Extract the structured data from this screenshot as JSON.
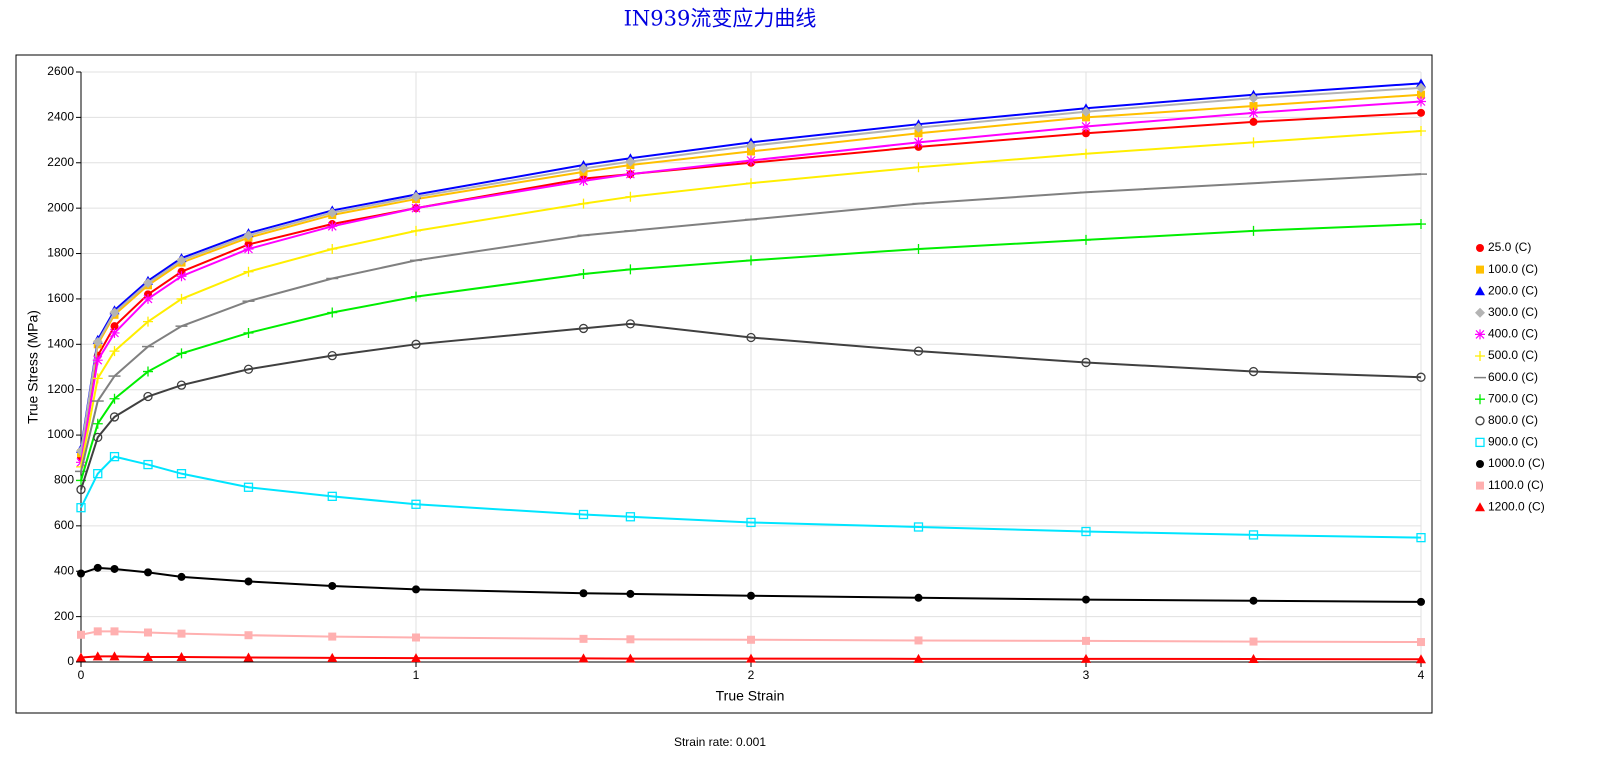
{
  "chart_data": {
    "type": "line",
    "title": "IN939流变应力曲线",
    "subtitle": "Strain rate: 0.001",
    "x_label": "True Strain",
    "y_label": "True Stress (MPa)",
    "xlim": [
      0,
      4
    ],
    "xticks": [
      0,
      1,
      2,
      3,
      4
    ],
    "ylim": [
      0,
      2600
    ],
    "yticks": [
      0,
      200,
      400,
      600,
      800,
      1000,
      1200,
      1400,
      1600,
      1800,
      2000,
      2200,
      2400,
      2600
    ],
    "grid": true,
    "legend": "right",
    "x": [
      0,
      0.05,
      0.1,
      0.2,
      0.3,
      0.5,
      0.75,
      1,
      1.5,
      1.64,
      2,
      2.5,
      3,
      3.5,
      4
    ],
    "series": [
      {
        "name": "25.0 (C)",
        "color": "#ff0000",
        "marker": "circle",
        "values": [
          900,
          1350,
          1480,
          1620,
          1720,
          1840,
          1930,
          2000,
          2130,
          2150,
          2200,
          2270,
          2330,
          2380,
          2420
        ]
      },
      {
        "name": "100.0 (C)",
        "color": "#ffc000",
        "marker": "square",
        "values": [
          920,
          1400,
          1530,
          1660,
          1760,
          1870,
          1970,
          2040,
          2160,
          2190,
          2250,
          2330,
          2400,
          2450,
          2500
        ]
      },
      {
        "name": "200.0 (C)",
        "color": "#0000ff",
        "marker": "triangle",
        "values": [
          940,
          1420,
          1550,
          1680,
          1780,
          1890,
          1990,
          2060,
          2190,
          2220,
          2290,
          2370,
          2440,
          2500,
          2550
        ]
      },
      {
        "name": "300.0 (C)",
        "color": "#b4b4b4",
        "marker": "diamond",
        "values": [
          930,
          1410,
          1540,
          1670,
          1770,
          1880,
          1980,
          2050,
          2175,
          2205,
          2275,
          2355,
          2425,
          2485,
          2530
        ]
      },
      {
        "name": "400.0 (C)",
        "color": "#ff00ff",
        "marker": "asterisk",
        "values": [
          880,
          1330,
          1450,
          1600,
          1700,
          1820,
          1920,
          2000,
          2120,
          2150,
          2210,
          2290,
          2360,
          2420,
          2470
        ]
      },
      {
        "name": "500.0 (C)",
        "color": "#ffee00",
        "marker": "plus",
        "values": [
          860,
          1250,
          1370,
          1500,
          1600,
          1720,
          1820,
          1900,
          2020,
          2050,
          2110,
          2180,
          2240,
          2290,
          2340
        ]
      },
      {
        "name": "600.0 (C)",
        "color": "#808080",
        "marker": "dash",
        "values": [
          840,
          1150,
          1260,
          1390,
          1480,
          1590,
          1690,
          1770,
          1880,
          1900,
          1950,
          2020,
          2070,
          2110,
          2150
        ]
      },
      {
        "name": "700.0 (C)",
        "color": "#00ee00",
        "marker": "plus",
        "values": [
          800,
          1050,
          1160,
          1280,
          1360,
          1450,
          1540,
          1610,
          1710,
          1730,
          1770,
          1820,
          1860,
          1900,
          1930
        ]
      },
      {
        "name": "800.0 (C)",
        "color": "#404040",
        "marker": "circle-open",
        "values": [
          760,
          990,
          1080,
          1170,
          1220,
          1290,
          1350,
          1400,
          1470,
          1490,
          1430,
          1370,
          1320,
          1280,
          1255
        ]
      },
      {
        "name": "900.0 (C)",
        "color": "#00e5ff",
        "marker": "square-open",
        "values": [
          680,
          830,
          905,
          870,
          830,
          770,
          730,
          695,
          650,
          640,
          615,
          595,
          575,
          560,
          548
        ]
      },
      {
        "name": "1000.0 (C)",
        "color": "#000000",
        "marker": "circle",
        "values": [
          390,
          415,
          410,
          395,
          375,
          355,
          335,
          320,
          303,
          300,
          292,
          283,
          275,
          270,
          265
        ]
      },
      {
        "name": "1100.0 (C)",
        "color": "#ffb0b0",
        "marker": "square",
        "values": [
          120,
          135,
          135,
          130,
          125,
          118,
          112,
          108,
          102,
          100,
          98,
          95,
          93,
          90,
          88
        ]
      },
      {
        "name": "1200.0 (C)",
        "color": "#ff0000",
        "marker": "triangle",
        "values": [
          20,
          25,
          25,
          22,
          22,
          20,
          18,
          17,
          16,
          15,
          15,
          14,
          14,
          13,
          12
        ]
      }
    ]
  }
}
